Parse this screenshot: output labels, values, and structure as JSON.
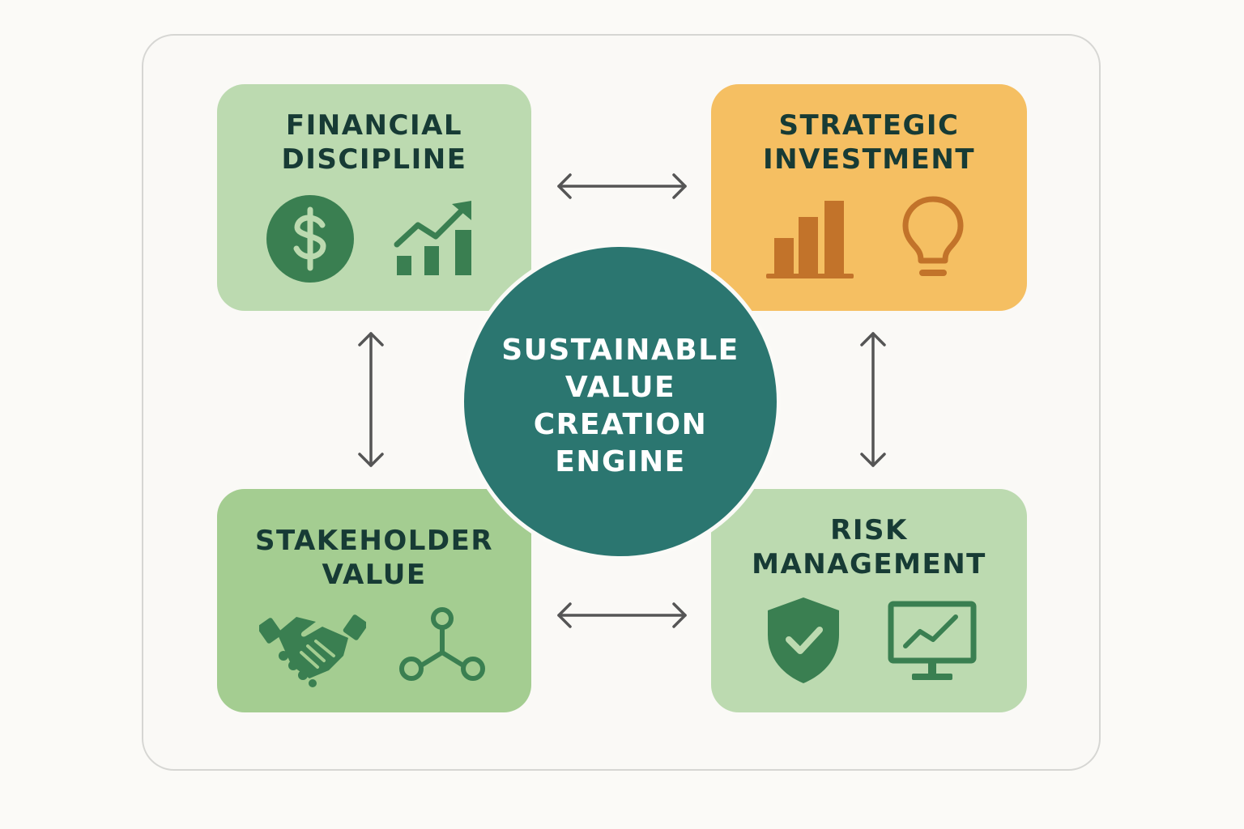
{
  "hub": {
    "lines": [
      "SUSTAINABLE",
      "VALUE",
      "CREATION",
      "ENGINE"
    ],
    "color": "#2b7670"
  },
  "cards": {
    "financial": {
      "title_lines": [
        "FINANCIAL",
        "DISCIPLINE"
      ],
      "color": "#bcdab0",
      "icons": [
        "dollar-coin-icon",
        "growth-bar-chart-icon"
      ]
    },
    "strategic": {
      "title_lines": [
        "STRATEGIC",
        "INVESTMENT"
      ],
      "color": "#f5bf62",
      "icons": [
        "bar-chart-icon",
        "lightbulb-icon"
      ]
    },
    "stakeholder": {
      "title_lines": [
        "STAKEHOLDER",
        "VALUE"
      ],
      "color": "#a4cd91",
      "icons": [
        "handshake-icon",
        "network-nodes-icon"
      ]
    },
    "risk": {
      "title_lines": [
        "RISK",
        "MANAGEMENT"
      ],
      "color": "#bcdab0",
      "icons": [
        "shield-check-icon",
        "monitor-chart-icon"
      ]
    }
  },
  "connectors": [
    "top-arrow",
    "bottom-arrow",
    "left-arrow",
    "right-arrow"
  ],
  "colors": {
    "text_dark": "#173b35",
    "green_icon": "#3a7f51",
    "orange_icon": "#c2732a",
    "arrow": "#555555"
  }
}
